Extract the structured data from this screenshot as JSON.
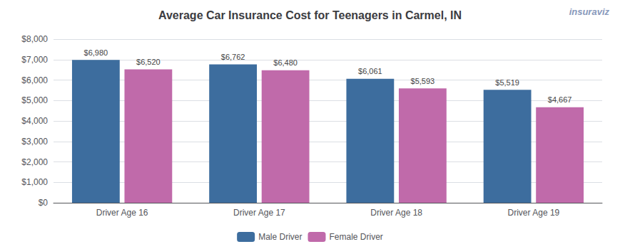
{
  "chart_data": {
    "type": "bar",
    "title": "Average Car Insurance Cost for Teenagers in Carmel, IN",
    "categories": [
      "Driver Age 16",
      "Driver Age 17",
      "Driver Age 18",
      "Driver Age 19"
    ],
    "series": [
      {
        "name": "Male Driver",
        "color": "#3d6d9e",
        "values": [
          6980,
          6762,
          6061,
          5519
        ],
        "value_labels": [
          "$6,980",
          "$6,762",
          "$6,061",
          "$5,519"
        ]
      },
      {
        "name": "Female Driver",
        "color": "#c06aaa",
        "values": [
          6520,
          6480,
          5593,
          4667
        ],
        "value_labels": [
          "$6,520",
          "$6,480",
          "$5,593",
          "$4,667"
        ]
      }
    ],
    "ylim": [
      0,
      8000
    ],
    "yticks": [
      {
        "value": 0,
        "label": "$0"
      },
      {
        "value": 1000,
        "label": "$1,000"
      },
      {
        "value": 2000,
        "label": "$2,000"
      },
      {
        "value": 3000,
        "label": "$3,000"
      },
      {
        "value": 4000,
        "label": "$4,000"
      },
      {
        "value": 5000,
        "label": "$5,000"
      },
      {
        "value": 6000,
        "label": "$6,000"
      },
      {
        "value": 7000,
        "label": "$7,000"
      },
      {
        "value": 8000,
        "label": "$8,000"
      }
    ],
    "grid": true,
    "legend": "bottom",
    "data_labels": true,
    "annotations": [
      "insuraviz"
    ]
  }
}
